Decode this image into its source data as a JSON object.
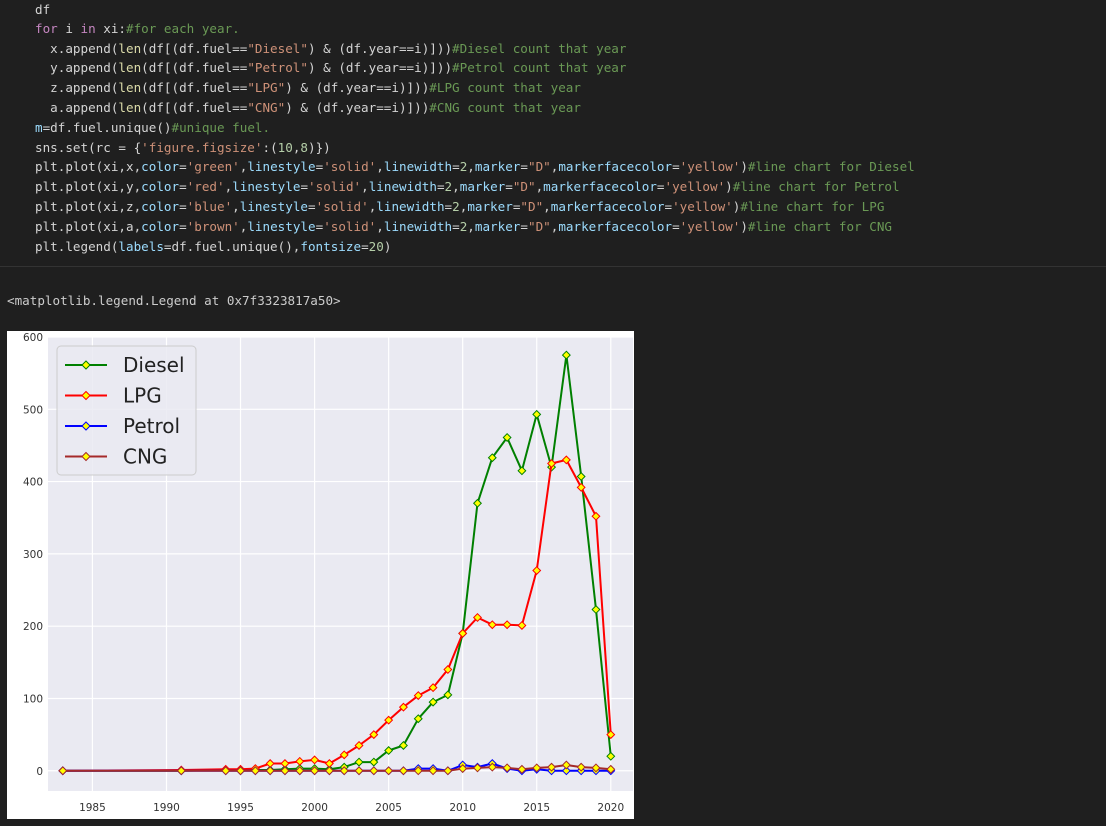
{
  "code": {
    "lines": [
      "df",
      "for i in xi:#for each year.",
      "  x.append(len(df[(df.fuel==\"Diesel\") & (df.year==i)]))#Diesel count that year",
      "  y.append(len(df[(df.fuel==\"Petrol\") & (df.year==i)]))#Petrol count that year",
      "  z.append(len(df[(df.fuel==\"LPG\") & (df.year==i)]))#LPG count that year",
      "  a.append(len(df[(df.fuel==\"CNG\") & (df.year==i)]))#CNG count that year",
      "m=df.fuel.unique()#unique fuel.",
      "sns.set(rc = {'figure.figsize':(10,8)})",
      "plt.plot(xi,x,color='green',linestyle='solid',linewidth=2,marker=\"D\",markerfacecolor='yellow')#line chart for Diesel",
      "plt.plot(xi,y,color='red',linestyle='solid',linewidth=2,marker=\"D\",markerfacecolor='yellow')#line chart for Petrol",
      "plt.plot(xi,z,color='blue',linestyle='solid',linewidth=2,marker=\"D\",markerfacecolor='yellow')#line chart for LPG",
      "plt.plot(xi,a,color='brown',linestyle='solid',linewidth=2,marker=\"D\",markerfacecolor='yellow')#line chart for CNG",
      "plt.legend(labels=df.fuel.unique(),fontsize=20)"
    ]
  },
  "output": {
    "repr_text": "<matplotlib.legend.Legend at 0x7f3323817a50>"
  },
  "colors": {
    "editor_bg": "#1f1f1f",
    "plot_bg": "#eaeaf2",
    "marker_face": "#ffff00",
    "keyword": "#c586c0",
    "string": "#ce9178",
    "comment": "#6a9955",
    "function": "#dcdcaa",
    "number": "#b5cea8",
    "variable": "#9cdcfe"
  },
  "chart_data": {
    "type": "line",
    "x": [
      1983,
      1991,
      1994,
      1995,
      1996,
      1997,
      1998,
      1999,
      2000,
      2001,
      2002,
      2003,
      2004,
      2005,
      2006,
      2007,
      2008,
      2009,
      2010,
      2011,
      2012,
      2013,
      2014,
      2015,
      2016,
      2017,
      2018,
      2019,
      2020
    ],
    "series": [
      {
        "name": "Diesel",
        "color": "#008000",
        "values": [
          0,
          0,
          1,
          0,
          1,
          1,
          2,
          3,
          3,
          2,
          5,
          12,
          12,
          28,
          35,
          72,
          95,
          105,
          190,
          370,
          433,
          461,
          415,
          493,
          420,
          575,
          407,
          223,
          20
        ]
      },
      {
        "name": "LPG",
        "color": "#ff0000",
        "values": [
          0,
          1,
          2,
          2,
          3,
          10,
          10,
          13,
          15,
          10,
          22,
          35,
          50,
          70,
          88,
          104,
          115,
          140,
          190,
          212,
          202,
          202,
          201,
          277,
          425,
          430,
          392,
          352,
          50
        ]
      },
      {
        "name": "Petrol",
        "color": "#0000ff",
        "values": [
          0,
          0,
          0,
          0,
          0,
          0,
          0,
          0,
          0,
          0,
          0,
          0,
          0,
          0,
          0,
          3,
          3,
          0,
          8,
          5,
          10,
          3,
          0,
          2,
          0,
          0,
          0,
          0,
          0
        ]
      },
      {
        "name": "CNG",
        "color": "#a52a2a",
        "values": [
          0,
          0,
          0,
          0,
          0,
          0,
          0,
          0,
          0,
          0,
          0,
          0,
          0,
          0,
          0,
          0,
          0,
          0,
          3,
          4,
          5,
          4,
          2,
          4,
          5,
          8,
          5,
          4,
          2
        ]
      }
    ],
    "xticks": [
      "1985",
      "1990",
      "1995",
      "2000",
      "2005",
      "2010",
      "2015",
      "2020"
    ],
    "yticks": [
      "0",
      "100",
      "200",
      "300",
      "400",
      "500",
      "600"
    ],
    "xlim": [
      1982,
      2021.5
    ],
    "ylim": [
      -28,
      600
    ],
    "grid": true,
    "legend_position": "upper-left"
  }
}
